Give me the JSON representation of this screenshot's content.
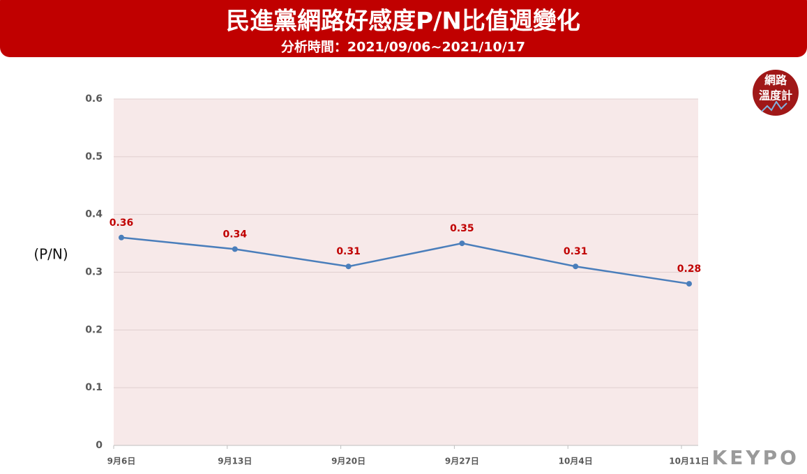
{
  "chart_data": {
    "type": "line",
    "title": "民進黨網路好感度P/N比值週變化",
    "subtitle": "分析時間：2021/09/06~2021/10/17",
    "y_label": "(P/N)",
    "categories": [
      "9月6日",
      "9月13日",
      "9月20日",
      "9月27日",
      "10月4日",
      "10月11日"
    ],
    "series": [
      {
        "name": "P/N",
        "color": "#4a7ebb",
        "values": [
          0.36,
          0.34,
          0.31,
          0.35,
          0.31,
          0.28
        ]
      }
    ],
    "ylim": [
      0,
      0.6
    ],
    "yticks": [
      0,
      0.1,
      0.2,
      0.3,
      0.4,
      0.5,
      0.6
    ],
    "grid": true,
    "label_color": "#c00000",
    "plot_background": "#f7e9e9",
    "header_color": "#c00000"
  },
  "logo": {
    "line1": "網路",
    "line2": "溫度計"
  },
  "brand": "KEYPO"
}
